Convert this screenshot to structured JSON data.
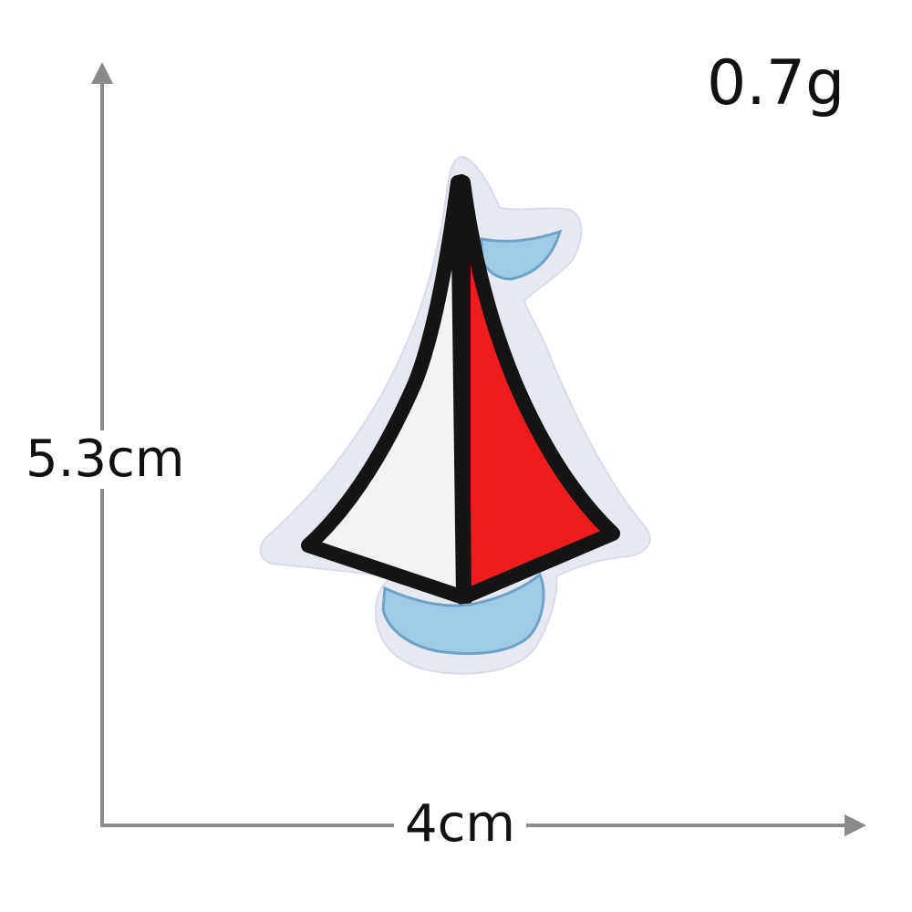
{
  "weight_label": "0.7g",
  "height_label": "5.3cm",
  "width_label": "4cm",
  "colors": {
    "arrow": "#8a8a8a",
    "outline": "#141414",
    "sail_left": "#f3f3f6",
    "sail_right": "#ee1c1c",
    "boat_blue": "#9fcbe6",
    "felt": "#e6e8f2"
  },
  "icons": [
    "sailboat-patch-icon",
    "arrow-up-icon",
    "arrow-right-icon"
  ]
}
